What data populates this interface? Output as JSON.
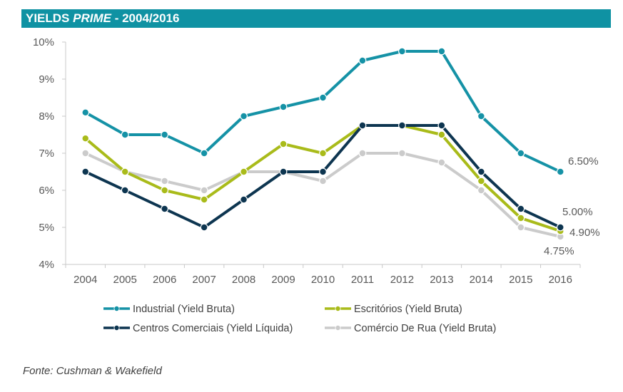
{
  "chart_data": {
    "type": "line",
    "title_main": "YIELDS ",
    "title_italic": "PRIME",
    "title_tail": " - 2004/2016",
    "x": [
      "2004",
      "2005",
      "2006",
      "2007",
      "2008",
      "2009",
      "2010",
      "2011",
      "2012",
      "2013",
      "2014",
      "2015",
      "2016"
    ],
    "ylim": [
      4,
      10
    ],
    "yticks": [
      "4%",
      "5%",
      "6%",
      "7%",
      "8%",
      "9%",
      "10%"
    ],
    "grid": false,
    "series": [
      {
        "name": "Industrial (Yield Bruta)",
        "color": "#1592a6",
        "values": [
          8.1,
          7.5,
          7.5,
          7.0,
          8.0,
          8.25,
          8.5,
          9.5,
          9.75,
          9.75,
          8.0,
          7.0,
          6.5
        ]
      },
      {
        "name": "Escritórios (Yield Bruta)",
        "color": "#a9bb1a",
        "values": [
          7.4,
          6.5,
          6.0,
          5.75,
          6.5,
          7.25,
          7.0,
          7.75,
          7.75,
          7.5,
          6.25,
          5.25,
          4.9
        ]
      },
      {
        "name": "Centros Comerciais (Yield Líquida)",
        "color": "#0d3550",
        "values": [
          6.5,
          6.0,
          5.5,
          5.0,
          5.75,
          6.5,
          6.5,
          7.75,
          7.75,
          7.75,
          6.5,
          5.5,
          5.0
        ]
      },
      {
        "name": "Comércio De Rua (Yield Bruta)",
        "color": "#cbcbcb",
        "values": [
          7.0,
          6.5,
          6.25,
          6.0,
          6.5,
          6.5,
          6.25,
          7.0,
          7.0,
          6.75,
          6.0,
          5.0,
          4.75
        ]
      }
    ],
    "annotations": [
      "6.50%",
      "5.00%",
      "4.90%",
      "4.75%"
    ]
  },
  "source": "Fonte: Cushman & Wakefield"
}
